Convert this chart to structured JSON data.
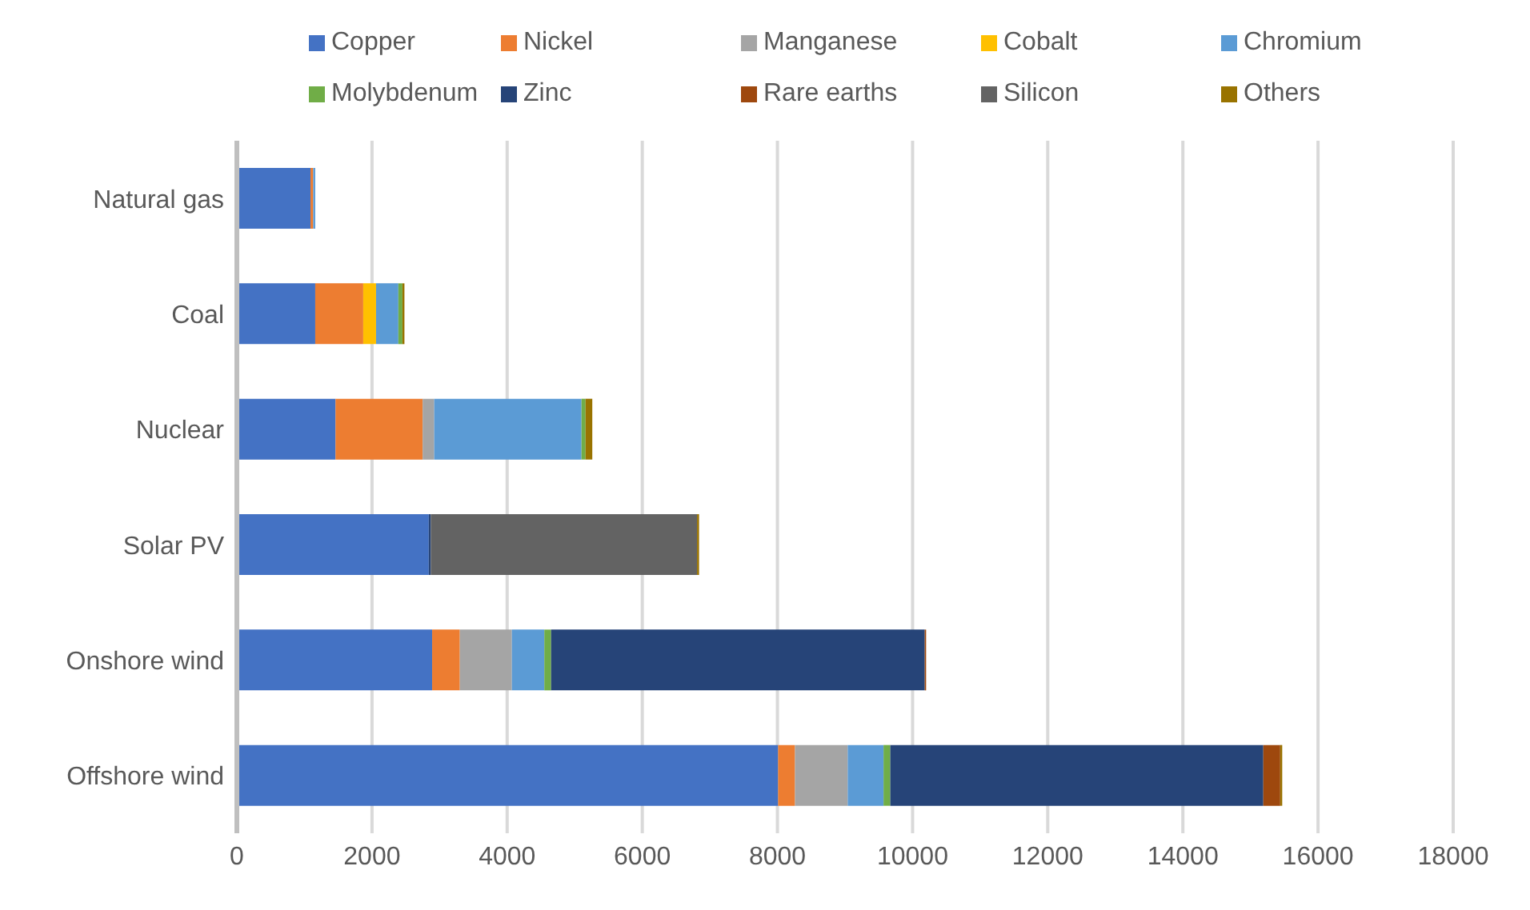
{
  "chart_data": {
    "type": "bar",
    "orientation": "horizontal",
    "stacked": true,
    "categories": [
      "Natural gas",
      "Coal",
      "Nuclear",
      "Solar PV",
      "Onshore wind",
      "Offshore wind"
    ],
    "series": [
      {
        "name": "Copper",
        "color": "#4472c4",
        "values": [
          1090,
          1160,
          1460,
          2840,
          2890,
          8010
        ]
      },
      {
        "name": "Nickel",
        "color": "#ed7d31",
        "values": [
          40,
          710,
          1290,
          null,
          410,
          250
        ]
      },
      {
        "name": "Manganese",
        "color": "#a5a5a5",
        "values": [
          null,
          null,
          170,
          null,
          770,
          780
        ]
      },
      {
        "name": "Cobalt",
        "color": "#ffc000",
        "values": [
          null,
          190,
          null,
          null,
          null,
          null
        ]
      },
      {
        "name": "Chromium",
        "color": "#5b9bd5",
        "values": [
          30,
          330,
          2180,
          null,
          480,
          530
        ]
      },
      {
        "name": "Molybdenum",
        "color": "#70ad47",
        "values": [
          null,
          60,
          60,
          null,
          100,
          100
        ]
      },
      {
        "name": "Zinc",
        "color": "#264478",
        "values": [
          null,
          null,
          null,
          30,
          5530,
          5520
        ]
      },
      {
        "name": "Rare earths",
        "color": "#9e480e",
        "values": [
          null,
          null,
          null,
          null,
          20,
          250
        ]
      },
      {
        "name": "Silicon",
        "color": "#636363",
        "values": [
          null,
          null,
          null,
          3940,
          null,
          null
        ]
      },
      {
        "name": "Others",
        "color": "#997300",
        "values": [
          null,
          30,
          100,
          30,
          null,
          30
        ]
      }
    ],
    "xlim": [
      0,
      18000
    ],
    "xticks": [
      0,
      2000,
      4000,
      6000,
      8000,
      10000,
      12000,
      14000,
      16000,
      18000
    ],
    "grid": "x",
    "legend": "top"
  }
}
